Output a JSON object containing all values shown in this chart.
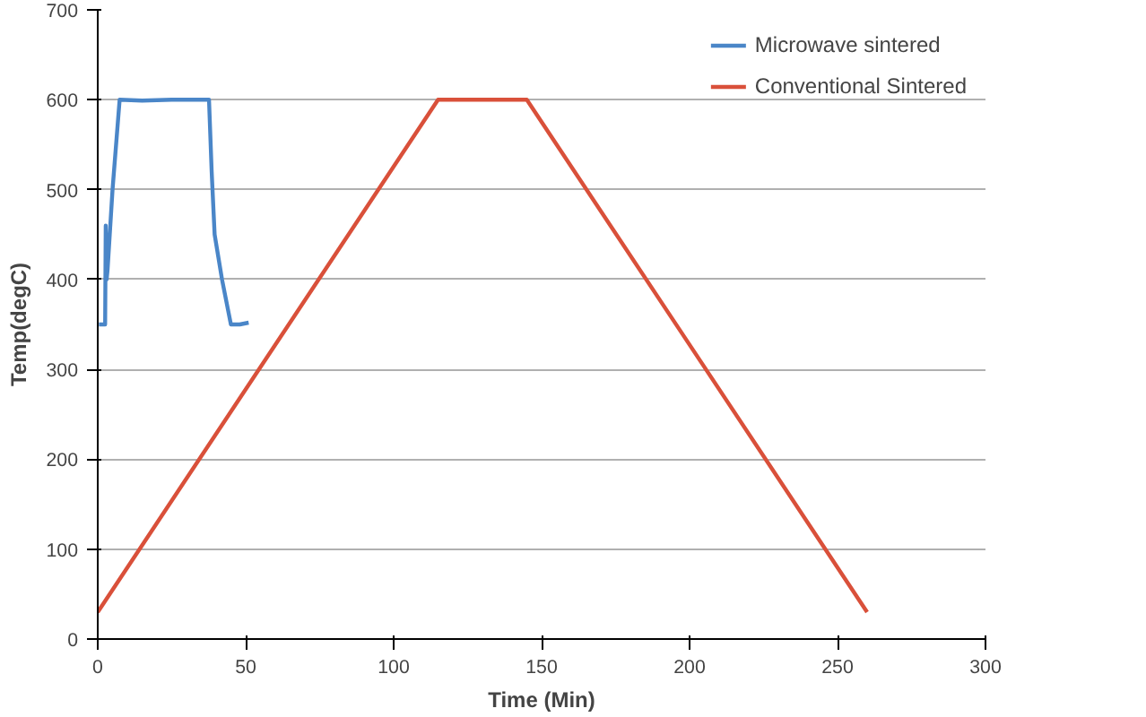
{
  "chart_data": {
    "type": "line",
    "xlabel": "Time (Min)",
    "ylabel": "Temp(degC)",
    "xlim": [
      0,
      300
    ],
    "ylim": [
      0,
      700
    ],
    "xticks": [
      0,
      50,
      100,
      150,
      200,
      250,
      300
    ],
    "yticks": [
      0,
      100,
      200,
      300,
      400,
      500,
      600,
      700
    ],
    "grid": "y",
    "legend": "top right",
    "line_style": "solid",
    "marker": "none",
    "series": [
      {
        "name": "Microwave sintered",
        "color": "#4a86c8",
        "x": [
          0.4,
          2.5,
          2.7,
          3.0,
          3.3,
          5.0,
          7.4,
          15,
          25,
          37.6,
          38.5,
          39.5,
          42,
          45,
          48,
          51
        ],
        "values": [
          350,
          350,
          460,
          400,
          410,
          500,
          600,
          599,
          600,
          600,
          520,
          450,
          400,
          350,
          350,
          352
        ]
      },
      {
        "name": "Conventional Sintered",
        "color": "#d9503a",
        "x": [
          0,
          115,
          145,
          260
        ],
        "values": [
          30,
          600,
          600,
          30
        ]
      }
    ]
  }
}
